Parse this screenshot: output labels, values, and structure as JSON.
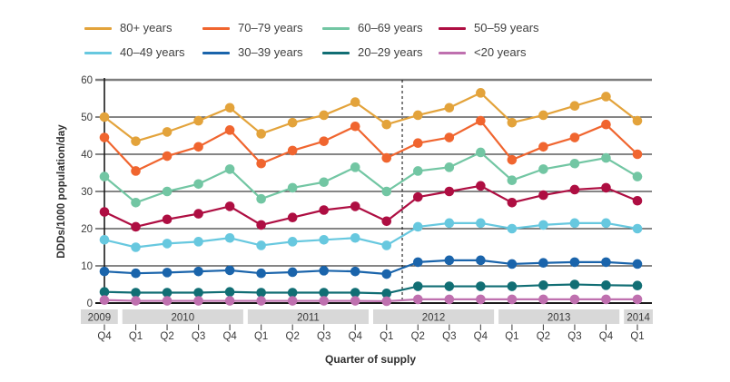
{
  "legend": {
    "items": [
      {
        "label": "80+ years",
        "color": "#E3A33B"
      },
      {
        "label": "70–79 years",
        "color": "#F0652F"
      },
      {
        "label": "60–69 years",
        "color": "#72C6A3"
      },
      {
        "label": "50–59 years",
        "color": "#AE0E42"
      },
      {
        "label": "40–49 years",
        "color": "#67C8DF"
      },
      {
        "label": "30–39 years",
        "color": "#1A64AB"
      },
      {
        "label": "20–29 years",
        "color": "#116E74"
      },
      {
        "label": "<20 years",
        "color": "#BF70AF"
      }
    ]
  },
  "chart_data": {
    "type": "line",
    "ylabel": "DDDs/1000 population/day",
    "xlabel": "Quarter of supply",
    "ylim": [
      0,
      60
    ],
    "yticks": [
      0,
      10,
      20,
      30,
      40,
      50,
      60
    ],
    "grid": "horizontal",
    "legend_position": "top",
    "x_labels": [
      "Q4",
      "Q1",
      "Q2",
      "Q3",
      "Q4",
      "Q1",
      "Q2",
      "Q3",
      "Q4",
      "Q1",
      "Q2",
      "Q3",
      "Q4",
      "Q1",
      "Q2",
      "Q3",
      "Q4",
      "Q1"
    ],
    "year_bands": [
      {
        "year": "2009",
        "quarters": 1
      },
      {
        "year": "2010",
        "quarters": 4
      },
      {
        "year": "2011",
        "quarters": 4
      },
      {
        "year": "2012",
        "quarters": 4
      },
      {
        "year": "2013",
        "quarters": 4
      },
      {
        "year": "2014",
        "quarters": 1
      }
    ],
    "dashed_divider_after_index": 9,
    "series": [
      {
        "name": "80+ years",
        "color": "#E3A33B",
        "values": [
          50,
          43.5,
          46,
          49,
          52.5,
          45.5,
          48.5,
          50.5,
          54,
          48,
          50.5,
          52.5,
          56.5,
          48.5,
          50.5,
          53,
          55.5,
          49
        ]
      },
      {
        "name": "70–79 years",
        "color": "#F0652F",
        "values": [
          44.5,
          35.5,
          39.5,
          42,
          46.5,
          37.5,
          41,
          43.5,
          47.5,
          39,
          43,
          44.5,
          49,
          38.5,
          42,
          44.5,
          48,
          40
        ]
      },
      {
        "name": "60–69 years",
        "color": "#72C6A3",
        "values": [
          34,
          27,
          30,
          32,
          36,
          28,
          31,
          32.5,
          36.5,
          30,
          35.5,
          36.5,
          40.5,
          33,
          36,
          37.5,
          39,
          34
        ]
      },
      {
        "name": "50–59 years",
        "color": "#AE0E42",
        "values": [
          24.5,
          20.5,
          22.5,
          24,
          26,
          21,
          23,
          25,
          26,
          22,
          28.5,
          30,
          31.5,
          27,
          29,
          30.5,
          31,
          27.5
        ]
      },
      {
        "name": "40–49 years",
        "color": "#67C8DF",
        "values": [
          17,
          15,
          16,
          16.5,
          17.5,
          15.5,
          16.5,
          17,
          17.5,
          15.5,
          20.5,
          21.5,
          21.5,
          20,
          21,
          21.5,
          21.5,
          20
        ]
      },
      {
        "name": "30–39 years",
        "color": "#1A64AB",
        "values": [
          8.5,
          8,
          8.2,
          8.5,
          8.8,
          8,
          8.3,
          8.7,
          8.5,
          7.8,
          11,
          11.5,
          11.5,
          10.5,
          10.8,
          11,
          11,
          10.5
        ]
      },
      {
        "name": "20–29 years",
        "color": "#116E74",
        "values": [
          3,
          2.8,
          2.8,
          2.8,
          3,
          2.8,
          2.8,
          2.8,
          2.8,
          2.6,
          4.5,
          4.5,
          4.5,
          4.5,
          4.8,
          5,
          4.8,
          4.7
        ]
      },
      {
        "name": "<20 years",
        "color": "#BF70AF",
        "values": [
          0.8,
          0.6,
          0.6,
          0.6,
          0.6,
          0.6,
          0.6,
          0.6,
          0.6,
          0.5,
          1,
          1,
          1,
          1,
          1,
          1,
          1,
          1
        ]
      }
    ]
  }
}
